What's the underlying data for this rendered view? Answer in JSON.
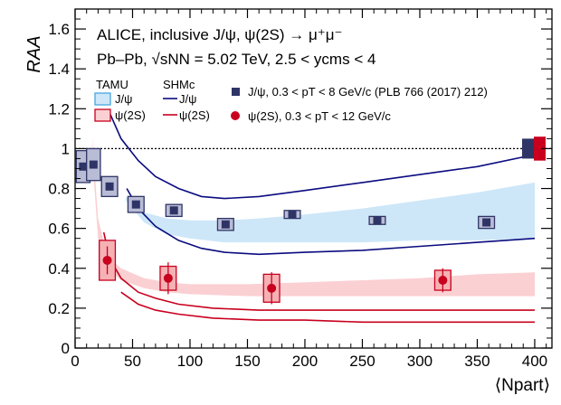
{
  "chart_data": {
    "type": "scatter",
    "title_line1": "ALICE, inclusive J/ψ, ψ(2S) → μ⁺μ⁻",
    "title_line2": "Pb–Pb, √sNN = 5.02 TeV, 2.5 < ycms < 4",
    "ylabel": "RAA",
    "xlabel": "⟨Npart⟩",
    "xlim": [
      0,
      415
    ],
    "ylim": [
      0,
      1.7
    ],
    "x_ticks": [
      0,
      50,
      100,
      150,
      200,
      250,
      300,
      350,
      400
    ],
    "y_ticks": [
      0,
      0.2,
      0.4,
      0.6,
      0.8,
      1,
      1.2,
      1.4,
      1.6
    ],
    "y_tick_labels": [
      "0",
      "0.2",
      "0.4",
      "0.6",
      "0.8",
      "1",
      "1.2",
      "1.4",
      "1.6"
    ],
    "reference_line": 1,
    "legend": {
      "tamu_header": "TAMU",
      "shmc_header": "SHMc",
      "jpsi_label": "J/ψ",
      "psi2s_label": "ψ(2S)",
      "jpsi_data_label": "J/ψ, 0.3 < pT < 8 GeV/c (PLB 766 (2017) 212)",
      "psi2s_data_label": "ψ(2S), 0.3 < pT < 12 GeV/c"
    },
    "colors": {
      "jpsi_marker": "#2e3566",
      "jpsi_box": "#b9bcd5",
      "jpsi_box_edge": "#2e3566",
      "tamu_jpsi_band": "#cde7f8",
      "tamu_jpsi_edge": "#48a6e0",
      "shmc_jpsi": "#0b0b80",
      "psi2s_marker": "#c8001e",
      "psi2s_box": "#f5b1b3",
      "psi2s_box_edge": "#c8001e",
      "tamu_psi2s_band": "#fbd0d3",
      "shmc_psi2s": "#c8001e",
      "norm_jpsi": "#2e3566",
      "norm_psi2s": "#c8001e"
    },
    "jpsi_series": [
      {
        "x": 7,
        "y": 0.91,
        "bw": 6,
        "sys": 0.08
      },
      {
        "x": 16,
        "y": 0.92,
        "bw": 6,
        "sys": 0.08
      },
      {
        "x": 30,
        "y": 0.81,
        "bw": 7,
        "sys": 0.05
      },
      {
        "x": 53,
        "y": 0.72,
        "bw": 7,
        "sys": 0.04
      },
      {
        "x": 86,
        "y": 0.69,
        "bw": 7,
        "sys": 0.03
      },
      {
        "x": 131,
        "y": 0.62,
        "bw": 7,
        "sys": 0.03
      },
      {
        "x": 189,
        "y": 0.67,
        "bw": 7,
        "sys": 0.02
      },
      {
        "x": 263,
        "y": 0.64,
        "bw": 7,
        "sys": 0.02
      },
      {
        "x": 358,
        "y": 0.63,
        "bw": 7,
        "sys": 0.03
      }
    ],
    "psi2s_series": [
      {
        "x": 28,
        "y": 0.44,
        "bw": 7,
        "sys": 0.1,
        "stat": 0.07
      },
      {
        "x": 81,
        "y": 0.35,
        "bw": 7,
        "sys": 0.06,
        "stat": 0.08
      },
      {
        "x": 171,
        "y": 0.3,
        "bw": 7,
        "sys": 0.07,
        "stat": 0.08
      },
      {
        "x": 320,
        "y": 0.34,
        "bw": 7,
        "sys": 0.05,
        "stat": 0.06
      }
    ],
    "tamu_jpsi_band": {
      "x": [
        44,
        60,
        80,
        100,
        130,
        160,
        200,
        250,
        300,
        350,
        400
      ],
      "upper": [
        0.76,
        0.68,
        0.65,
        0.64,
        0.64,
        0.65,
        0.67,
        0.7,
        0.74,
        0.78,
        0.83
      ],
      "lower": [
        0.74,
        0.63,
        0.57,
        0.55,
        0.53,
        0.53,
        0.53,
        0.53,
        0.54,
        0.54,
        0.55
      ]
    },
    "tamu_psi2s_band": {
      "x": [
        15,
        20,
        28,
        40,
        60,
        80,
        100,
        150,
        200,
        250,
        300,
        350,
        400
      ],
      "upper": [
        1.05,
        0.65,
        0.46,
        0.4,
        0.35,
        0.33,
        0.32,
        0.32,
        0.33,
        0.34,
        0.35,
        0.37,
        0.38
      ],
      "lower": [
        0.95,
        0.55,
        0.4,
        0.34,
        0.3,
        0.28,
        0.27,
        0.26,
        0.26,
        0.26,
        0.26,
        0.26,
        0.26
      ]
    },
    "shmc_jpsi_upper": {
      "x": [
        30,
        40,
        55,
        70,
        90,
        110,
        130,
        160,
        200,
        250,
        300,
        350,
        400
      ],
      "y": [
        1.18,
        1.05,
        0.94,
        0.86,
        0.8,
        0.76,
        0.75,
        0.76,
        0.79,
        0.83,
        0.87,
        0.91,
        0.97
      ]
    },
    "shmc_jpsi_lower": {
      "x": [
        45,
        55,
        70,
        90,
        110,
        130,
        160,
        200,
        250,
        300,
        350,
        400
      ],
      "y": [
        0.8,
        0.7,
        0.61,
        0.54,
        0.5,
        0.48,
        0.47,
        0.48,
        0.49,
        0.51,
        0.53,
        0.55
      ]
    },
    "shmc_psi2s_upper": {
      "x": [
        25,
        30,
        40,
        55,
        70,
        90,
        120,
        160,
        200,
        250,
        300,
        350,
        400
      ],
      "y": [
        0.58,
        0.45,
        0.35,
        0.28,
        0.25,
        0.22,
        0.2,
        0.19,
        0.19,
        0.19,
        0.19,
        0.19,
        0.19
      ]
    },
    "shmc_psi2s_lower": {
      "x": [
        40,
        55,
        70,
        90,
        120,
        160,
        200,
        250,
        300,
        350,
        400
      ],
      "y": [
        0.28,
        0.22,
        0.19,
        0.17,
        0.15,
        0.14,
        0.14,
        0.13,
        0.13,
        0.13,
        0.13
      ]
    },
    "normalization_boxes": [
      {
        "series": "jpsi",
        "y": 1.0,
        "half_height": 0.05
      },
      {
        "series": "psi2s",
        "y": 1.0,
        "half_height": 0.06
      }
    ]
  }
}
